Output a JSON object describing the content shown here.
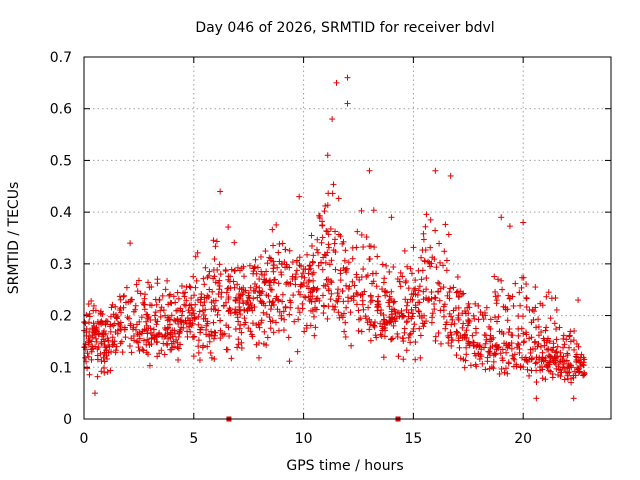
{
  "chart_data": {
    "type": "scatter",
    "title": "Day 046 of 2026, SRMTID for receiver bdvl",
    "xlabel": "GPS time / hours",
    "ylabel": "SRMTID / TECUs",
    "xlim": [
      0,
      24
    ],
    "ylim": [
      0,
      0.7
    ],
    "xticks": [
      0,
      5,
      10,
      15,
      20
    ],
    "xtick_labels": [
      "0",
      "5",
      "10",
      "15",
      "20"
    ],
    "yticks": [
      0,
      0.1,
      0.2,
      0.3,
      0.4,
      0.5,
      0.6,
      0.7
    ],
    "ytick_labels": [
      "0",
      "0.1",
      "0.2",
      "0.3",
      "0.4",
      "0.5",
      "0.6",
      "0.7"
    ],
    "grid": true,
    "marker": "+",
    "color": "#e00000",
    "series": [
      {
        "name": "SRMTID",
        "note": "dense point cloud approximated by hourly envelope; highlighted extremes listed",
        "hourly_profile": {
          "hour": [
            0,
            1,
            2,
            3,
            4,
            5,
            6,
            7,
            8,
            9,
            10,
            11,
            12,
            13,
            14,
            15,
            16,
            17,
            18,
            19,
            20,
            21,
            22,
            22.8
          ],
          "low": [
            0.07,
            0.06,
            0.1,
            0.07,
            0.1,
            0.1,
            0.08,
            0.09,
            0.1,
            0.1,
            0.09,
            0.12,
            0.11,
            0.1,
            0.07,
            0.09,
            0.11,
            0.08,
            0.08,
            0.06,
            0.06,
            0.05,
            0.05,
            0.06
          ],
          "mid": [
            0.16,
            0.15,
            0.2,
            0.17,
            0.17,
            0.2,
            0.22,
            0.22,
            0.24,
            0.27,
            0.24,
            0.28,
            0.26,
            0.24,
            0.2,
            0.22,
            0.24,
            0.18,
            0.14,
            0.15,
            0.14,
            0.12,
            0.11,
            0.1
          ],
          "high": [
            0.26,
            0.24,
            0.34,
            0.33,
            0.28,
            0.33,
            0.4,
            0.36,
            0.37,
            0.43,
            0.38,
            0.5,
            0.45,
            0.48,
            0.33,
            0.36,
            0.48,
            0.33,
            0.3,
            0.39,
            0.38,
            0.27,
            0.23,
            0.16
          ]
        },
        "extremes": [
          {
            "x": 11.5,
            "y": 0.65
          },
          {
            "x": 12.0,
            "y": 0.66
          },
          {
            "x": 12.0,
            "y": 0.61
          },
          {
            "x": 11.3,
            "y": 0.58
          },
          {
            "x": 11.1,
            "y": 0.51
          },
          {
            "x": 13.0,
            "y": 0.48
          },
          {
            "x": 16.0,
            "y": 0.48
          },
          {
            "x": 16.7,
            "y": 0.47
          },
          {
            "x": 9.8,
            "y": 0.43
          },
          {
            "x": 6.2,
            "y": 0.44
          },
          {
            "x": 2.1,
            "y": 0.34
          },
          {
            "x": 14.0,
            "y": 0.39
          },
          {
            "x": 19.0,
            "y": 0.39
          },
          {
            "x": 20.0,
            "y": 0.38
          },
          {
            "x": 22.5,
            "y": 0.23
          },
          {
            "x": 0.5,
            "y": 0.05
          },
          {
            "x": 20.6,
            "y": 0.04
          },
          {
            "x": 22.3,
            "y": 0.04
          }
        ]
      }
    ],
    "extra_markers": [
      {
        "x": 6.6,
        "y": 0
      },
      {
        "x": 14.3,
        "y": 0
      }
    ]
  }
}
